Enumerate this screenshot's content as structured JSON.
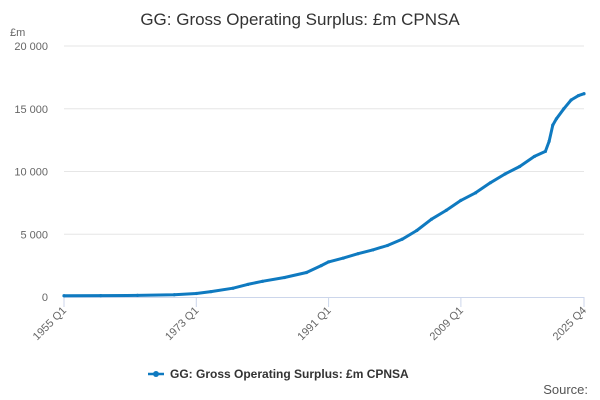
{
  "chart_data": {
    "type": "line",
    "title": "GG: Gross Operating Surplus: £m CPNSA",
    "ylabel": "£m",
    "xlabel": "",
    "ylim": [
      0,
      20000
    ],
    "y_ticks": [
      0,
      5000,
      10000,
      15000,
      20000
    ],
    "y_tick_labels": [
      "0",
      "5 000",
      "10 000",
      "15 000",
      "20 000"
    ],
    "x_start": 1955.0,
    "x_end": 2025.75,
    "x_ticks": [
      1955.0,
      1973.0,
      1991.0,
      2009.0,
      2025.75
    ],
    "x_tick_labels": [
      "1955 Q1",
      "1973 Q1",
      "1991 Q1",
      "2009 Q1",
      "2025 Q4"
    ],
    "grid": "horizontal",
    "legend_position": "bottom",
    "series": [
      {
        "name": "GG: Gross Operating Surplus: £m CPNSA",
        "color": "#0f7ac0",
        "x": [
          1955.0,
          1960.0,
          1965.0,
          1970.0,
          1973.0,
          1975.0,
          1978.0,
          1980.0,
          1982.0,
          1985.0,
          1988.0,
          1990.0,
          1991.0,
          1993.0,
          1995.0,
          1997.0,
          1999.0,
          2001.0,
          2003.0,
          2005.0,
          2007.0,
          2009.0,
          2011.0,
          2013.0,
          2015.0,
          2017.0,
          2019.0,
          2020.5,
          2021.0,
          2021.5,
          2022.0,
          2023.0,
          2024.0,
          2025.0,
          2025.75
        ],
        "values": [
          100,
          110,
          130,
          180,
          280,
          430,
          700,
          1000,
          1250,
          1550,
          1950,
          2500,
          2800,
          3100,
          3450,
          3750,
          4100,
          4600,
          5300,
          6200,
          6900,
          7700,
          8300,
          9100,
          9800,
          10400,
          11200,
          11600,
          12400,
          13700,
          14200,
          15000,
          15700,
          16050,
          16200
        ]
      }
    ]
  },
  "source_label": "Source:"
}
